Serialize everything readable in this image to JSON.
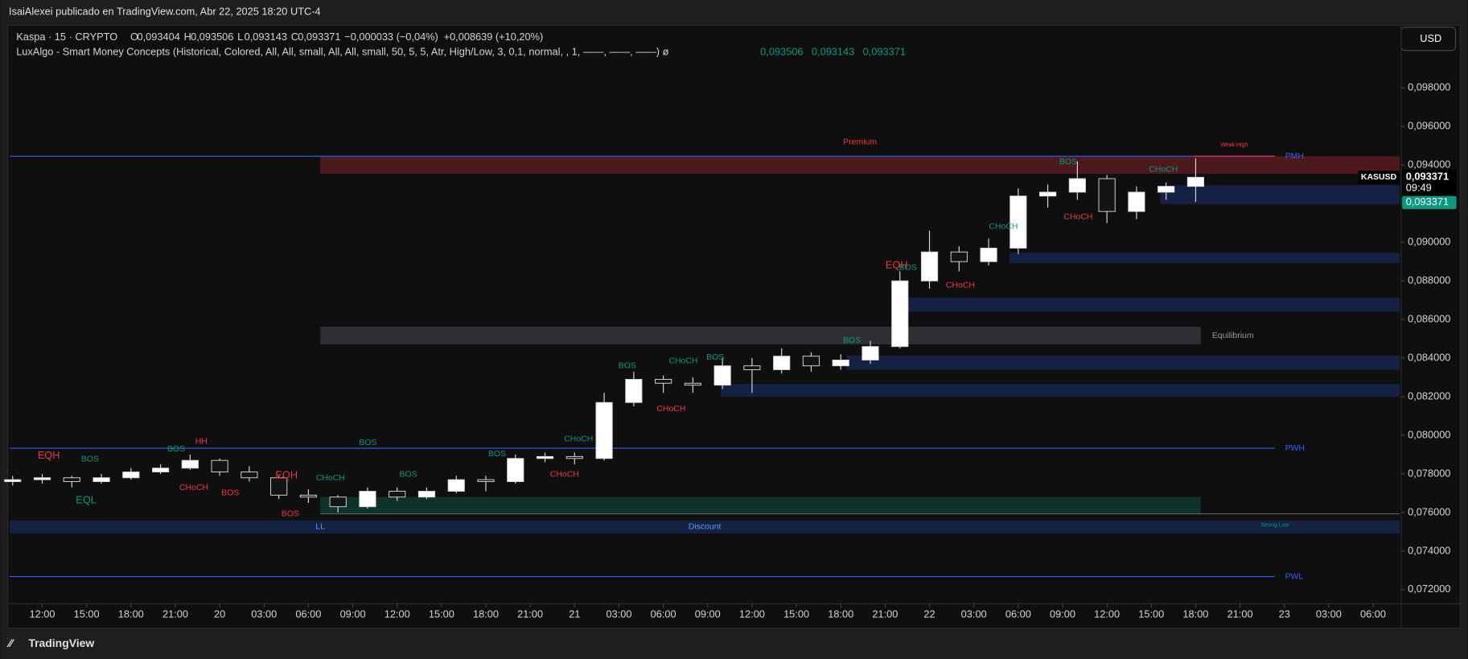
{
  "header": {
    "title": "IsaiAlexei publicado en TradingView.com, Abr 22, 2025 18:20 UTC-4",
    "brand": "TradingView"
  },
  "legend": {
    "symbol": "Kaspa · 15 · CRYPTO",
    "ohlc": [
      "O",
      "0,093404",
      "H",
      "0,093506",
      "L",
      "0,093143",
      "C",
      "0,093371",
      "−0,000033 (−0,04%)",
      "+0,008639 (+10,20%)"
    ],
    "indicator": "LuxAlgo - Smart Money Concepts (Historical, Colored, All, All, small, All, All, small, 50, 5, 5, Atr, High/Low, 3, 0,1, normal, , 1, ——, ——, ——)  ø",
    "indicator_values": [
      "0,093506",
      "0,093143",
      "0,093371"
    ]
  },
  "price_axis": {
    "currency": "USD",
    "symbol_tag": "KASUSD",
    "last": {
      "value": 0.093371,
      "label": "0,093371",
      "countdown": "09:49"
    },
    "close_label": "0,093371",
    "close_color": "#089981"
  },
  "chart_data": {
    "type": "candlestick",
    "up_color": "#ffffff",
    "down_color": "#141414",
    "wick_color": "#d8d8d8",
    "x": [
      10,
      12,
      14,
      16,
      18,
      20,
      22,
      24,
      26,
      28,
      30,
      32,
      34,
      36,
      38,
      40,
      42,
      44,
      46,
      48,
      50,
      52,
      54,
      56,
      58,
      60,
      62,
      64,
      66,
      68,
      70,
      72,
      74,
      76,
      78,
      80,
      82,
      84,
      86,
      88,
      90
    ],
    "open": [
      0.0776,
      0.0777,
      0.0778,
      0.0776,
      0.0778,
      0.0781,
      0.0783,
      0.0787,
      0.0781,
      0.0778,
      0.0769,
      0.0768,
      0.0763,
      0.0771,
      0.0768,
      0.0771,
      0.0777,
      0.0776,
      0.0788,
      0.0789,
      0.0788,
      0.0817,
      0.0829,
      0.0827,
      0.0826,
      0.0836,
      0.0834,
      0.0841,
      0.0836,
      0.0839,
      0.0846,
      0.088,
      0.0895,
      0.089,
      0.0897,
      0.0924,
      0.0926,
      0.0933,
      0.0916,
      0.0926,
      0.0929
    ],
    "high": [
      0.0779,
      0.078,
      0.0779,
      0.078,
      0.0783,
      0.0785,
      0.079,
      0.0788,
      0.0784,
      0.0779,
      0.0772,
      0.0769,
      0.0773,
      0.0773,
      0.0773,
      0.0779,
      0.0779,
      0.079,
      0.0791,
      0.0791,
      0.0822,
      0.0833,
      0.0831,
      0.083,
      0.084,
      0.084,
      0.0845,
      0.0843,
      0.0842,
      0.0849,
      0.0885,
      0.0906,
      0.0898,
      0.0902,
      0.0928,
      0.093,
      0.0942,
      0.0935,
      0.0929,
      0.0931,
      0.09435
    ],
    "low": [
      0.0774,
      0.0775,
      0.0773,
      0.0775,
      0.0777,
      0.078,
      0.0782,
      0.0779,
      0.0776,
      0.0767,
      0.0765,
      0.076,
      0.0762,
      0.0766,
      0.0767,
      0.077,
      0.0771,
      0.0775,
      0.0786,
      0.0785,
      0.0787,
      0.0815,
      0.0822,
      0.0822,
      0.0824,
      0.0822,
      0.0832,
      0.0833,
      0.0834,
      0.0837,
      0.0845,
      0.0876,
      0.0885,
      0.0888,
      0.0894,
      0.0918,
      0.0922,
      0.091,
      0.0912,
      0.0922,
      0.0921
    ],
    "close": [
      0.0777,
      0.0778,
      0.0776,
      0.0778,
      0.0781,
      0.0783,
      0.0787,
      0.0781,
      0.0778,
      0.0769,
      0.0768,
      0.0763,
      0.0771,
      0.0768,
      0.0771,
      0.0777,
      0.0776,
      0.0788,
      0.0789,
      0.0788,
      0.0817,
      0.0829,
      0.0827,
      0.0826,
      0.0836,
      0.0834,
      0.0841,
      0.0836,
      0.0839,
      0.0846,
      0.088,
      0.0895,
      0.089,
      0.0897,
      0.0924,
      0.0926,
      0.0933,
      0.0916,
      0.0926,
      0.0929,
      0.093371
    ],
    "xlim": [
      9.8,
      103.9
    ],
    "ylim": [
      0.07127,
      0.1012
    ],
    "xticks": [
      {
        "value": 12,
        "label": "12:00"
      },
      {
        "value": 15,
        "label": "15:00"
      },
      {
        "value": 18,
        "label": "18:00"
      },
      {
        "value": 21,
        "label": "21:00"
      },
      {
        "value": 24,
        "label": "20"
      },
      {
        "value": 27,
        "label": "03:00"
      },
      {
        "value": 30,
        "label": "06:00"
      },
      {
        "value": 33,
        "label": "09:00"
      },
      {
        "value": 36,
        "label": "12:00"
      },
      {
        "value": 39,
        "label": "15:00"
      },
      {
        "value": 42,
        "label": "18:00"
      },
      {
        "value": 45,
        "label": "21:00"
      },
      {
        "value": 48,
        "label": "21"
      },
      {
        "value": 51,
        "label": "03:00"
      },
      {
        "value": 54,
        "label": "06:00"
      },
      {
        "value": 57,
        "label": "09:00"
      },
      {
        "value": 60,
        "label": "12:00"
      },
      {
        "value": 63,
        "label": "15:00"
      },
      {
        "value": 66,
        "label": "18:00"
      },
      {
        "value": 69,
        "label": "21:00"
      },
      {
        "value": 72,
        "label": "22"
      },
      {
        "value": 75,
        "label": "03:00"
      },
      {
        "value": 78,
        "label": "06:00"
      },
      {
        "value": 81,
        "label": "09:00"
      },
      {
        "value": 84,
        "label": "12:00"
      },
      {
        "value": 87,
        "label": "15:00"
      },
      {
        "value": 90,
        "label": "18:00"
      },
      {
        "value": 93,
        "label": "21:00"
      },
      {
        "value": 96,
        "label": "23"
      },
      {
        "value": 99,
        "label": "03:00"
      },
      {
        "value": 102,
        "label": "06:00"
      }
    ],
    "yticks": [
      {
        "value": 0.072,
        "label": "0,072000"
      },
      {
        "value": 0.074,
        "label": "0,074000"
      },
      {
        "value": 0.076,
        "label": "0,076000"
      },
      {
        "value": 0.078,
        "label": "0,078000"
      },
      {
        "value": 0.08,
        "label": "0,080000"
      },
      {
        "value": 0.082,
        "label": "0,082000"
      },
      {
        "value": 0.084,
        "label": "0,084000"
      },
      {
        "value": 0.086,
        "label": "0,086000"
      },
      {
        "value": 0.088,
        "label": "0,088000"
      },
      {
        "value": 0.09,
        "label": "0,090000"
      },
      {
        "value": 0.092,
        "label": "0,092000"
      },
      {
        "value": 0.094,
        "label": "0,094000"
      },
      {
        "value": 0.096,
        "label": "0,096000"
      },
      {
        "value": 0.098,
        "label": "0,098000"
      }
    ],
    "zones": [
      {
        "x": [
          30.8,
          103.8
        ],
        "y": [
          0.09355,
          0.09446
        ],
        "color": "rgba(242,54,69,0.28)",
        "label": "Premium",
        "label_color": "#f23645",
        "label_position": "top"
      },
      {
        "x": [
          30.8,
          90.35
        ],
        "y": [
          0.08471,
          0.08563
        ],
        "color": "rgba(120,123,134,0.3)",
        "label": "Equilibrium",
        "label_color": "#9598a1",
        "label_position": "right"
      },
      {
        "x": [
          9.8,
          103.8
        ],
        "y": [
          0.07491,
          0.07559
        ],
        "color": "rgba(41,98,255,0.22)",
        "label": "Discount",
        "label_color": "#5b9cf6",
        "label_position": "center"
      },
      {
        "x": [
          30.8,
          90.35
        ],
        "y": [
          0.07593,
          0.0768
        ],
        "color": "rgba(8,153,129,0.25)"
      },
      {
        "x": [
          87.6,
          103.8
        ],
        "y": [
          0.09198,
          0.09296
        ],
        "color": "rgba(41,98,255,0.22)"
      },
      {
        "x": [
          77.4,
          103.8
        ],
        "y": [
          0.08893,
          0.08946
        ],
        "color": "rgba(41,98,255,0.22)"
      },
      {
        "x": [
          69.9,
          103.8
        ],
        "y": [
          0.08641,
          0.08714
        ],
        "color": "rgba(41,98,255,0.22)"
      },
      {
        "x": [
          66.4,
          103.8
        ],
        "y": [
          0.0834,
          0.08413
        ],
        "color": "rgba(41,98,255,0.22)"
      },
      {
        "x": [
          57.9,
          103.8
        ],
        "y": [
          0.082,
          0.08267
        ],
        "color": "rgba(41,98,255,0.22)"
      }
    ],
    "levels": [
      {
        "y": 0.09446,
        "x": [
          9.8,
          95.35
        ],
        "color": "#2962ff",
        "label": "PMH",
        "label_color": "#2962ff",
        "label_position": "right"
      },
      {
        "y": 0.09446,
        "x": [
          89.85,
          95.35
        ],
        "color": "#f23645",
        "label": "Weak High",
        "label_color": "#f23645",
        "label_position": "above"
      },
      {
        "y": 0.07933,
        "x": [
          9.8,
          95.35
        ],
        "color": "#2962ff",
        "label": "PWH",
        "label_color": "#2962ff",
        "label_position": "right"
      },
      {
        "y": 0.07593,
        "x": [
          30.8,
          103.8
        ],
        "color": "#5d606b",
        "label": "Strong Low",
        "label_color": "#089981",
        "label_position": "below"
      },
      {
        "y": 0.07268,
        "x": [
          9.8,
          95.35
        ],
        "color": "#2962ff",
        "label": "PWL",
        "label_color": "#2962ff",
        "label_position": "right"
      }
    ],
    "annotations": [
      {
        "text": "EQH",
        "x": 12.44,
        "y": 0.07894,
        "color": "#f23645",
        "size": "big"
      },
      {
        "text": "BOS",
        "x": 15.23,
        "y": 0.07875,
        "color": "#089981"
      },
      {
        "text": "EQL",
        "x": 14.97,
        "y": 0.07661,
        "color": "#089981",
        "size": "big"
      },
      {
        "text": "BOS",
        "x": 21.05,
        "y": 0.07928,
        "color": "#089981"
      },
      {
        "text": "HH",
        "x": 22.76,
        "y": 0.07967,
        "color": "#f23645"
      },
      {
        "text": "CHoCH",
        "x": 22.25,
        "y": 0.07729,
        "color": "#f23645"
      },
      {
        "text": "BOS",
        "x": 24.72,
        "y": 0.077,
        "color": "#f23645"
      },
      {
        "text": "EQH",
        "x": 28.52,
        "y": 0.07792,
        "color": "#f23645",
        "size": "big"
      },
      {
        "text": "BOS",
        "x": 28.77,
        "y": 0.07593,
        "color": "#f23645"
      },
      {
        "text": "LL",
        "x": 30.8,
        "y": 0.07525,
        "color": "#5b9cf6"
      },
      {
        "text": "CHoCH",
        "x": 31.49,
        "y": 0.07778,
        "color": "#089981"
      },
      {
        "text": "BOS",
        "x": 34.03,
        "y": 0.07962,
        "color": "#089981"
      },
      {
        "text": "BOS",
        "x": 36.75,
        "y": 0.07797,
        "color": "#089981"
      },
      {
        "text": "BOS",
        "x": 42.76,
        "y": 0.07904,
        "color": "#089981"
      },
      {
        "text": "CHoCH",
        "x": 47.32,
        "y": 0.07797,
        "color": "#f23645"
      },
      {
        "text": "CHoCH",
        "x": 48.27,
        "y": 0.07981,
        "color": "#089981"
      },
      {
        "text": "BOS",
        "x": 51.56,
        "y": 0.0836,
        "color": "#089981"
      },
      {
        "text": "CHoCH",
        "x": 55.35,
        "y": 0.08384,
        "color": "#089981"
      },
      {
        "text": "BOS",
        "x": 57.51,
        "y": 0.08403,
        "color": "#089981"
      },
      {
        "text": "CHoCH",
        "x": 54.53,
        "y": 0.08136,
        "color": "#f23645"
      },
      {
        "text": "BOS",
        "x": 66.75,
        "y": 0.0849,
        "color": "#089981"
      },
      {
        "text": "EQH",
        "x": 69.78,
        "y": 0.08879,
        "color": "#f23645",
        "size": "big"
      },
      {
        "text": "BOS",
        "x": 70.54,
        "y": 0.08869,
        "color": "#089981"
      },
      {
        "text": "CHoCH",
        "x": 74.09,
        "y": 0.08777,
        "color": "#f23645"
      },
      {
        "text": "CHoCH",
        "x": 77.0,
        "y": 0.09082,
        "color": "#089981"
      },
      {
        "text": "BOS",
        "x": 81.37,
        "y": 0.09417,
        "color": "#089981"
      },
      {
        "text": "CHoCH",
        "x": 82.06,
        "y": 0.09131,
        "color": "#f23645"
      },
      {
        "text": "CHoCH",
        "x": 87.82,
        "y": 0.09378,
        "color": "#089981"
      }
    ]
  }
}
